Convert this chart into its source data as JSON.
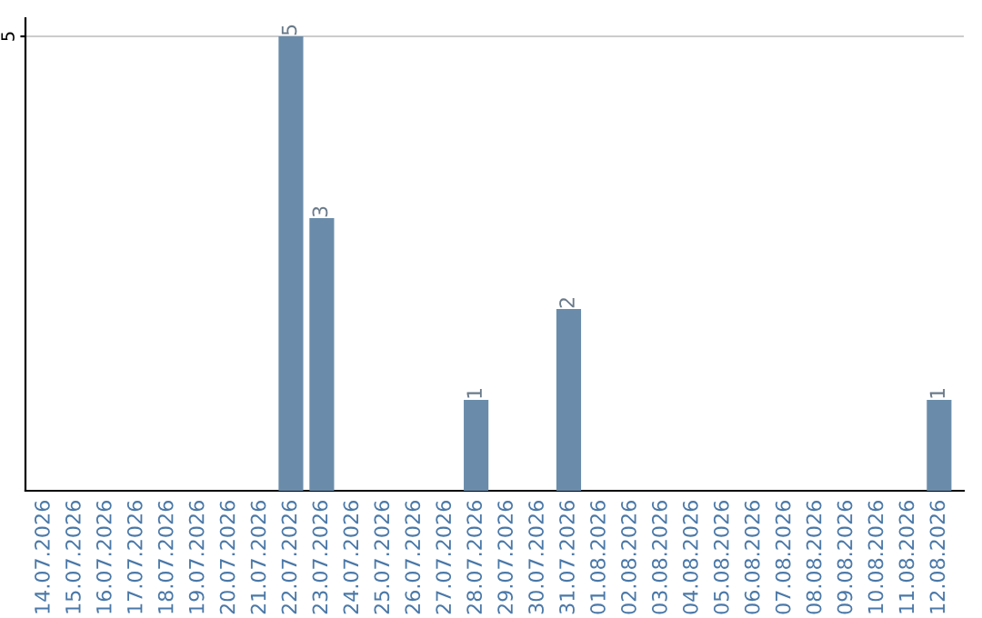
{
  "chart_data": {
    "type": "bar",
    "categories": [
      "14.07.2026",
      "15.07.2026",
      "16.07.2026",
      "17.07.2026",
      "18.07.2026",
      "19.07.2026",
      "20.07.2026",
      "21.07.2026",
      "22.07.2026",
      "23.07.2026",
      "24.07.2026",
      "25.07.2026",
      "26.07.2026",
      "27.07.2026",
      "28.07.2026",
      "29.07.2026",
      "30.07.2026",
      "31.07.2026",
      "01.08.2026",
      "02.08.2026",
      "03.08.2026",
      "04.08.2026",
      "05.08.2026",
      "06.08.2026",
      "07.08.2026",
      "08.08.2026",
      "09.08.2026",
      "10.08.2026",
      "11.08.2026",
      "12.08.2026"
    ],
    "values": [
      0,
      0,
      0,
      0,
      0,
      0,
      0,
      0,
      5,
      3,
      0,
      0,
      0,
      0,
      1,
      0,
      0,
      2,
      0,
      0,
      0,
      0,
      0,
      0,
      0,
      0,
      0,
      0,
      0,
      1
    ],
    "value_labels": [
      null,
      null,
      null,
      null,
      null,
      null,
      null,
      null,
      "5",
      "3",
      null,
      null,
      null,
      null,
      "1",
      null,
      null,
      "2",
      null,
      null,
      null,
      null,
      null,
      null,
      null,
      null,
      null,
      null,
      null,
      "1"
    ],
    "color": "#6a8caa",
    "ylim": [
      0,
      5.2
    ],
    "yticks": [
      5
    ],
    "grid": "y",
    "legend": false
  }
}
